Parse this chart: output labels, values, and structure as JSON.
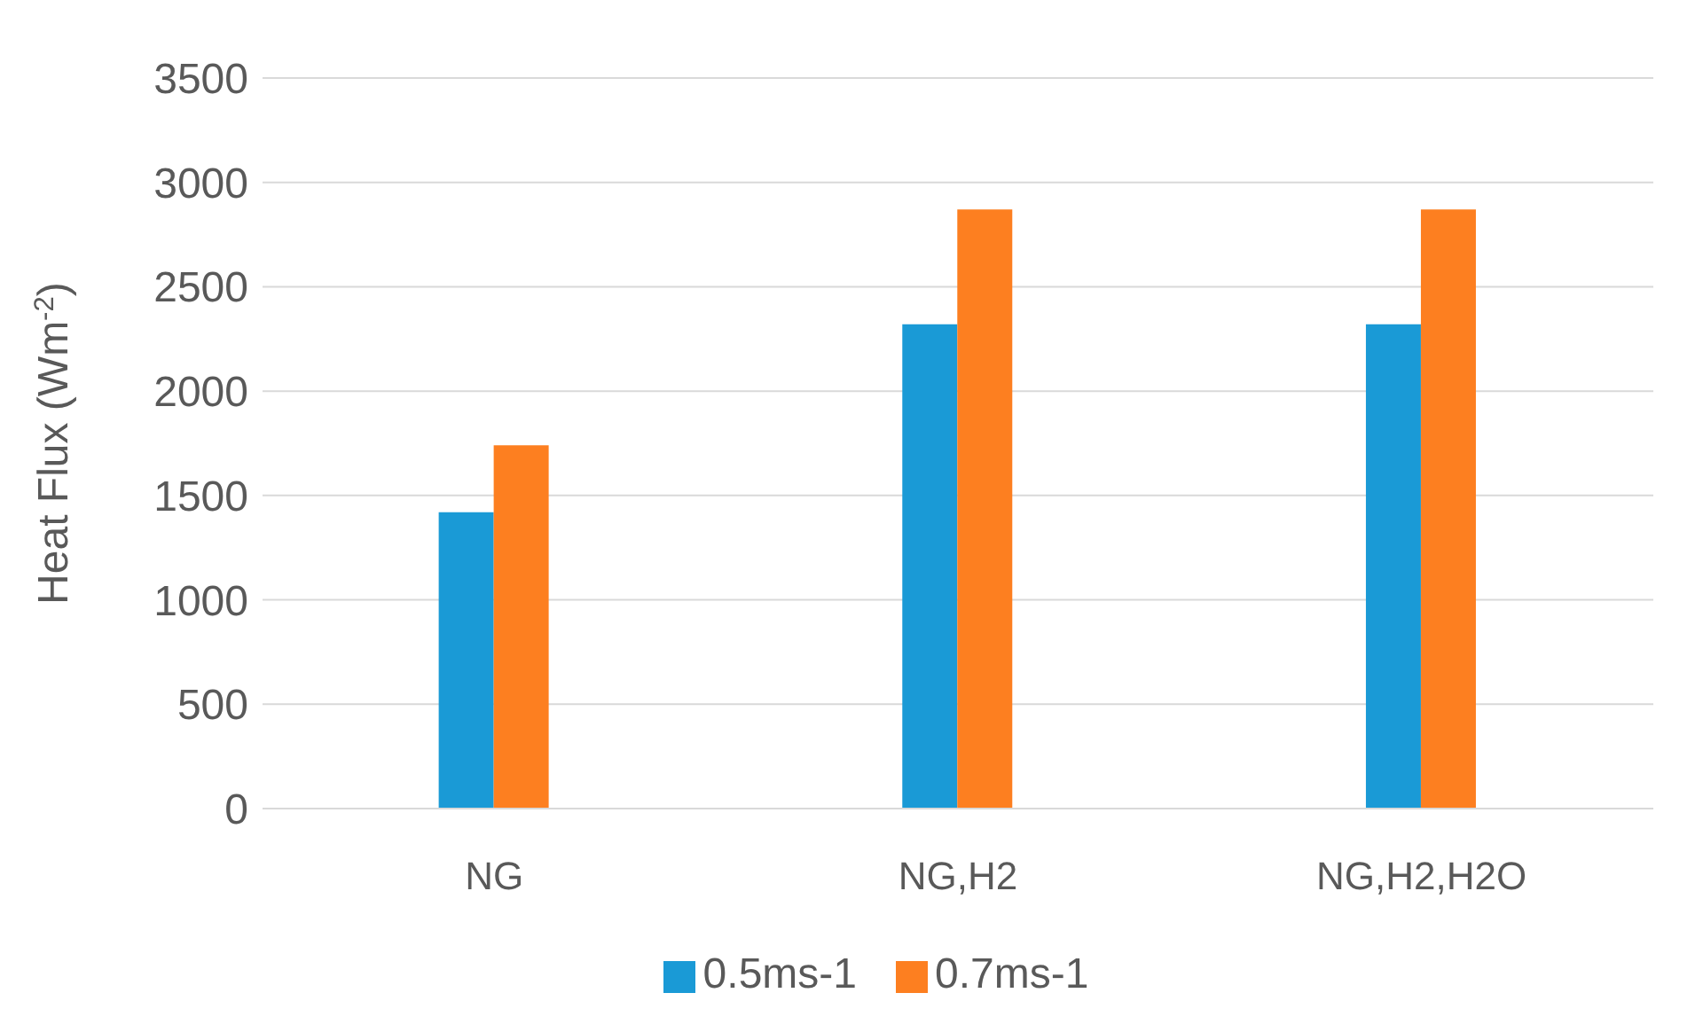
{
  "chart_data": {
    "type": "bar",
    "ylabel": "Heat Flux (Wm$^{-2}$)",
    "categories": [
      "NG",
      "NG,H2",
      "NG,H2,H2O"
    ],
    "series": [
      {
        "name": "0.5ms-1",
        "color": "#1a9ad6",
        "values": [
          1420,
          2320,
          2320
        ]
      },
      {
        "name": "0.7ms-1",
        "color": "#fd7f20",
        "values": [
          1740,
          2870,
          2870
        ]
      }
    ],
    "ylim": [
      0,
      3500
    ],
    "yticks": [
      0,
      500,
      1000,
      1500,
      2000,
      2500,
      3000,
      3500
    ],
    "grid": "y",
    "legend": "bottom"
  }
}
